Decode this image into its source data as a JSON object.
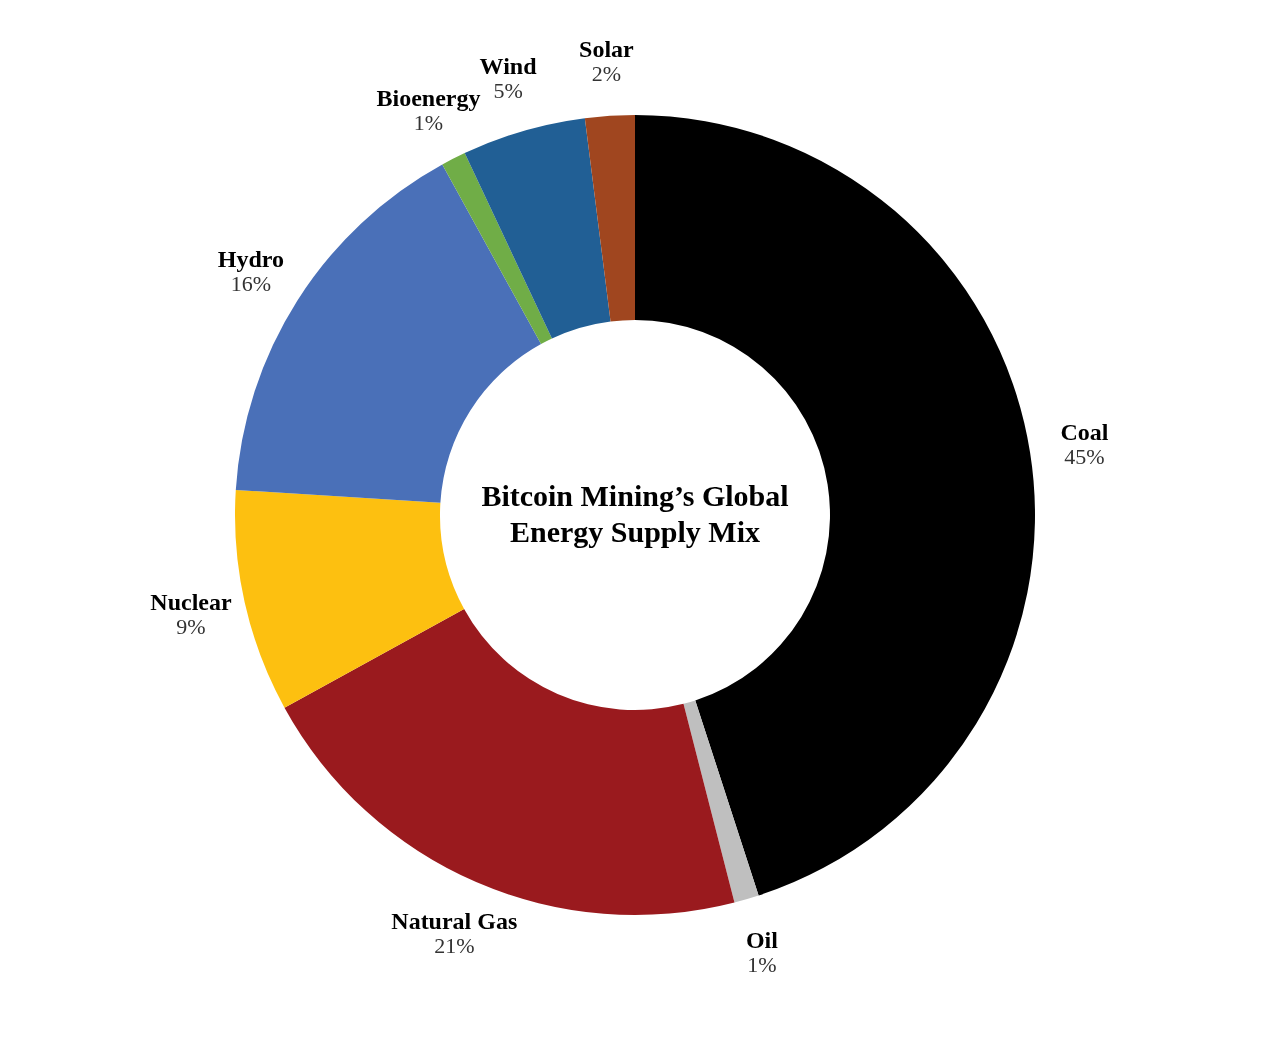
{
  "chart_data": {
    "type": "donut",
    "title": "Bitcoin Mining’s Global Energy Supply Mix",
    "categories": [
      "Coal",
      "Oil",
      "Natural Gas",
      "Nuclear",
      "Hydro",
      "Bioenergy",
      "Wind",
      "Solar"
    ],
    "values": [
      45,
      1,
      21,
      9,
      16,
      1,
      5,
      2
    ],
    "value_labels": [
      "45%",
      "1%",
      "21%",
      "9%",
      "16%",
      "1%",
      "5%",
      "2%"
    ],
    "colors": [
      "#000000",
      "#bfbfbf",
      "#9a1a1e",
      "#fdc010",
      "#4a70b8",
      "#70ad47",
      "#215f95",
      "#a0461f"
    ]
  }
}
